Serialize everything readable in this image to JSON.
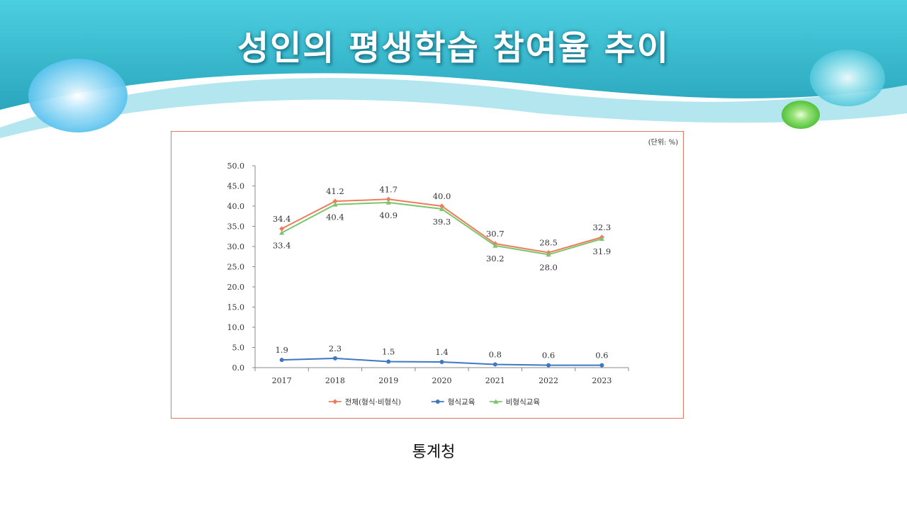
{
  "slide": {
    "title": "성인의 평생학습 참여율 추이",
    "source": "통계청"
  },
  "colors": {
    "banner_dark": "#2aa9c0",
    "banner_light": "#4fd0df",
    "wave_light": "#aee3ee",
    "frame": "#e07a5f",
    "series_total": "#ed7d5a",
    "series_formal": "#3f78c2",
    "series_nonformal": "#7cc46e"
  },
  "chart_data": {
    "type": "line",
    "unit_note": "(단위: %)",
    "categories": [
      "2017",
      "2018",
      "2019",
      "2020",
      "2021",
      "2022",
      "2023"
    ],
    "ylim": [
      0,
      50
    ],
    "yticks": [
      "0.0",
      "5.0",
      "10.0",
      "15.0",
      "20.0",
      "25.0",
      "30.0",
      "35.0",
      "40.0",
      "45.0",
      "50.0"
    ],
    "grid": false,
    "legend_position": "bottom",
    "series": [
      {
        "name": "전체(형식·비형식)",
        "marker": "diamond",
        "color": "#ed7d5a",
        "label_side": "above",
        "values": [
          34.4,
          41.2,
          41.7,
          40.0,
          30.7,
          28.5,
          32.3
        ],
        "labels": [
          "34.4",
          "41.2",
          "41.7",
          "40.0",
          "30.7",
          "28.5",
          "32.3"
        ]
      },
      {
        "name": "형식교육",
        "marker": "circle",
        "color": "#3f78c2",
        "label_side": "above",
        "values": [
          1.9,
          2.3,
          1.5,
          1.4,
          0.8,
          0.6,
          0.6
        ],
        "labels": [
          "1.9",
          "2.3",
          "1.5",
          "1.4",
          "0.8",
          "0.6",
          "0.6"
        ]
      },
      {
        "name": "비형식교육",
        "marker": "triangle",
        "color": "#7cc46e",
        "label_side": "below",
        "values": [
          33.4,
          40.4,
          40.9,
          39.3,
          30.2,
          28.0,
          31.9
        ],
        "labels": [
          "33.4",
          "40.4",
          "40.9",
          "39.3",
          "30.2",
          "28.0",
          "31.9"
        ]
      }
    ]
  }
}
